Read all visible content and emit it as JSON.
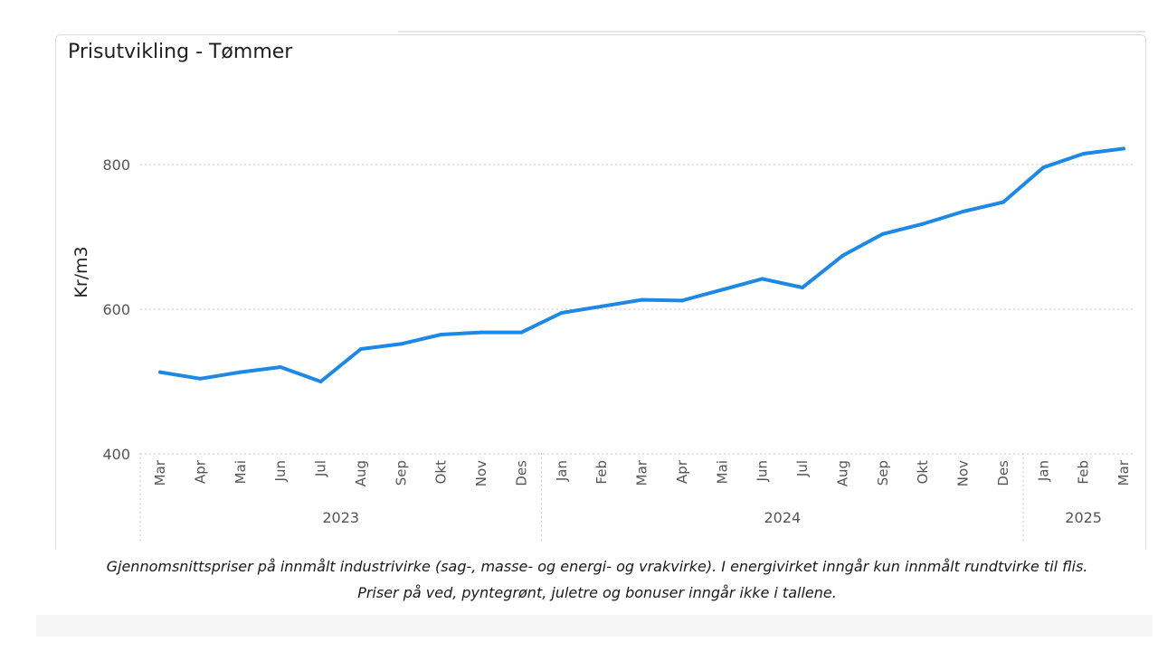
{
  "chart_data": {
    "type": "line",
    "title": "Prisutvikling - Tømmer",
    "xlabel": "",
    "ylabel": "Kr/m3",
    "ylim": [
      400,
      830
    ],
    "yticks": [
      400,
      600,
      800
    ],
    "grid": true,
    "categories": [
      "Mar",
      "Apr",
      "Mai",
      "Jun",
      "Jul",
      "Aug",
      "Sep",
      "Okt",
      "Nov",
      "Des",
      "Jan",
      "Feb",
      "Mar",
      "Apr",
      "Mai",
      "Jun",
      "Jul",
      "Aug",
      "Sep",
      "Okt",
      "Nov",
      "Des",
      "Jan",
      "Feb",
      "Mar"
    ],
    "years": [
      {
        "label": "2023",
        "start": 0,
        "end": 9
      },
      {
        "label": "2024",
        "start": 10,
        "end": 21
      },
      {
        "label": "2025",
        "start": 22,
        "end": 24
      }
    ],
    "series": [
      {
        "values": [
          513,
          504,
          513,
          520,
          500,
          545,
          552,
          565,
          568,
          568,
          595,
          604,
          613,
          612,
          627,
          642,
          630,
          674,
          704,
          718,
          735,
          748,
          796,
          815,
          822
        ]
      }
    ],
    "line_color": "#1E88E5"
  },
  "caption": {
    "line1": "Gjennomsnittspriser på innmålt industrivirke (sag-, masse- og energi- og vrakvirke). I energivirket inngår kun innmålt rundtvirke til flis.",
    "line2": "Priser på ved, pyntegrønt, juletre og bonuser inngår ikke i tallene."
  }
}
